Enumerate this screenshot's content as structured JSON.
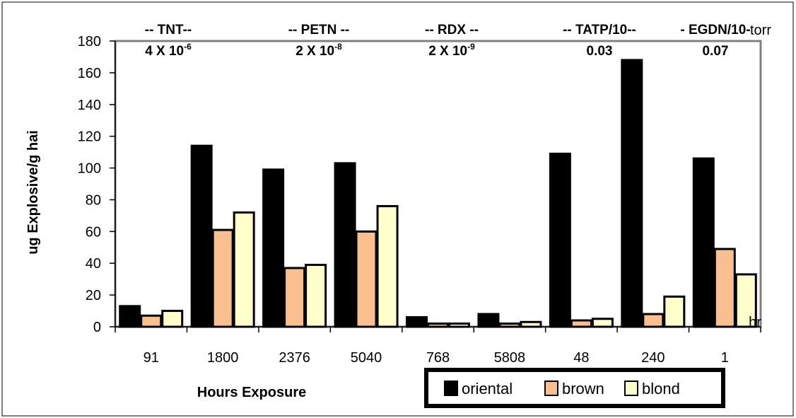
{
  "chart_data": {
    "type": "bar",
    "ylabel": "ug Explosive/g hai",
    "xlabel": "Hours Exposure",
    "ylim": [
      0,
      180
    ],
    "yticks": [
      0,
      20,
      40,
      60,
      80,
      100,
      120,
      140,
      160,
      180
    ],
    "categories": [
      "91",
      "1800",
      "2376",
      "5040",
      "768",
      "5808",
      "48",
      "240",
      "1"
    ],
    "series": [
      {
        "name": "oriental",
        "color": "#000000",
        "values": [
          13,
          114,
          99,
          103,
          6,
          8,
          109,
          168,
          106
        ]
      },
      {
        "name": "brown",
        "color": "#f9bf8f",
        "values": [
          7,
          61,
          37,
          60,
          2,
          2,
          4,
          8,
          49
        ]
      },
      {
        "name": "blond",
        "color": "#ffffcc",
        "values": [
          10,
          72,
          39,
          76,
          2,
          3,
          5,
          19,
          33
        ]
      }
    ],
    "group_labels": [
      {
        "name": "-- TNT--",
        "pressure_base": "4 X 10",
        "pressure_exp": "-6"
      },
      {
        "name": "-- PETN --",
        "pressure_base": "2 X 10",
        "pressure_exp": "-8"
      },
      {
        "name": "-- RDX --",
        "pressure_base": "2 X 10",
        "pressure_exp": "-9"
      },
      {
        "name": "-- TATP/10--",
        "pressure_base": "0.03",
        "pressure_exp": ""
      },
      {
        "name": "- EGDN/10-",
        "pressure_base": "0.07",
        "pressure_exp": ""
      }
    ],
    "unit_top": "torr",
    "unit_right": "hr",
    "legend": {
      "position": "bottom-right",
      "entries": [
        "oriental",
        "brown",
        "blond"
      ]
    }
  }
}
